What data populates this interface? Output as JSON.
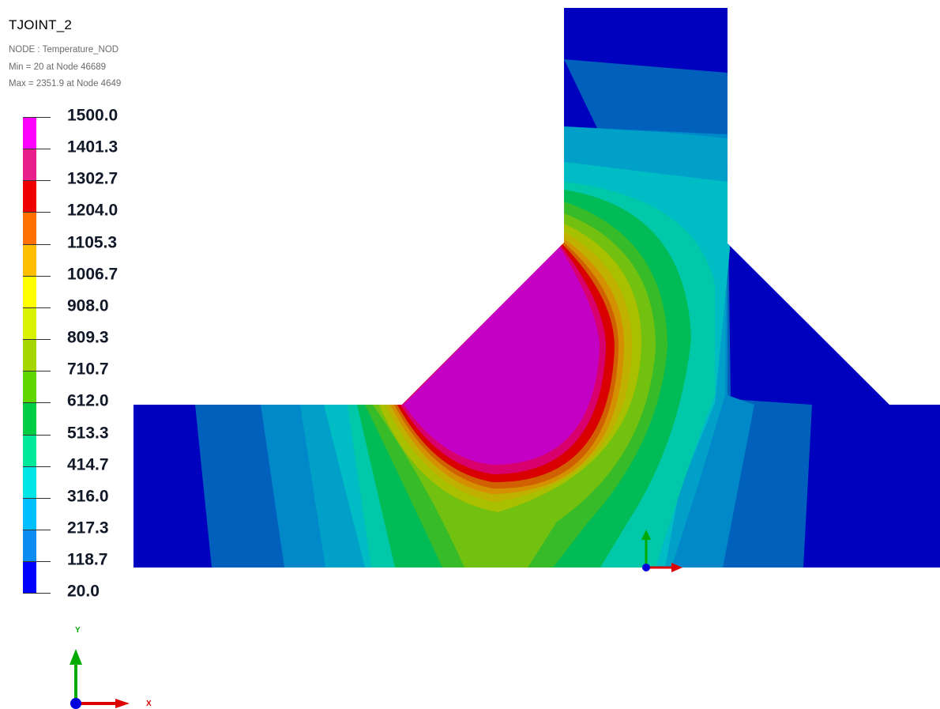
{
  "view": {
    "title": "TJOINT_2",
    "info_lines": [
      "NODE : Temperature_NOD",
      "Min = 20 at Node 46689",
      "Max = 2351.9 at Node 4649"
    ]
  },
  "legend": {
    "labels": [
      "1500.0",
      "1401.3",
      "1302.7",
      "1204.0",
      "1105.3",
      "1006.7",
      "908.0",
      "809.3",
      "710.7",
      "612.0",
      "513.3",
      "414.7",
      "316.0",
      "217.3",
      "118.7",
      "20.0"
    ],
    "colors": [
      "#ff00ff",
      "#e8208c",
      "#ee0000",
      "#ff7000",
      "#ffbf00",
      "#ffff00",
      "#d9f200",
      "#a6d600",
      "#60d600",
      "#00cc44",
      "#00e89a",
      "#00e6e6",
      "#00bfff",
      "#0a8cf0",
      "#0000ff"
    ]
  },
  "contour_palette": {
    "deep_blue": "#0000bf",
    "dark_blue": "#0060bb",
    "mid_blue": "#0088c8",
    "steel_blue": "#00a0c8",
    "teal": "#00bcc4",
    "turquoise": "#00c8a8",
    "green": "#00bb56",
    "mid_green": "#38bb28",
    "lime": "#72c010",
    "yellow_green": "#a8c000",
    "olive": "#c0b000",
    "amber": "#d49000",
    "orange": "#d06000",
    "red": "#d80000",
    "crimson": "#d8006c",
    "magenta": "#c400c4"
  },
  "axis": {
    "x_label": "x",
    "y_label": "y",
    "x_label_big": "X",
    "y_label_big": "Y",
    "x_color": "#dd0000",
    "y_color": "#00aa00",
    "origin_color": "#0000dd"
  }
}
